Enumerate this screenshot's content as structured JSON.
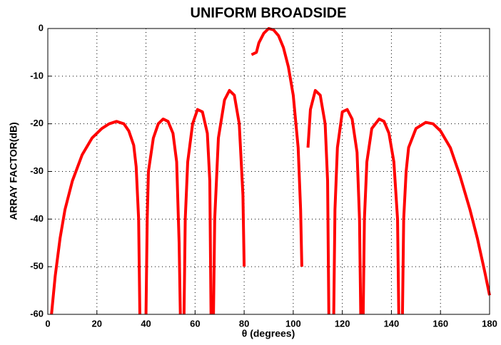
{
  "chart_data": {
    "type": "line",
    "title": "UNIFORM BROADSIDE",
    "x_label": "θ (degrees)",
    "y_label": "ARRAY FACTOR(dB)",
    "xlim": [
      0,
      180
    ],
    "ylim": [
      -60,
      0
    ],
    "xticks": [
      0,
      20,
      40,
      60,
      80,
      100,
      120,
      140,
      160,
      180
    ],
    "yticks": [
      -60,
      -50,
      -40,
      -30,
      -20,
      -10,
      0
    ],
    "grid": true,
    "series": [
      {
        "color": "#ff0000",
        "x": [
          1.5,
          3,
          5,
          7,
          10,
          14,
          18,
          22,
          25,
          28,
          31,
          33,
          35,
          36,
          37,
          37.5,
          null,
          40,
          40.5,
          41,
          43,
          45,
          47,
          49,
          51,
          52.5,
          53.5,
          54,
          null,
          55.5,
          56,
          57,
          59,
          61,
          63,
          65,
          66,
          66.5,
          null,
          67.5,
          68,
          69.5,
          72,
          74,
          76,
          78,
          79.5,
          80,
          null,
          83,
          85,
          86,
          88,
          90,
          92,
          94,
          96,
          98,
          100,
          102,
          103,
          103.5,
          null,
          106,
          107,
          109,
          111,
          113,
          114,
          114.5,
          null,
          116.5,
          117,
          118,
          120,
          122,
          124,
          126,
          127,
          127.5,
          null,
          128.5,
          129,
          130,
          132,
          135,
          137,
          139,
          141,
          142.5,
          143,
          null,
          144.5,
          145,
          146,
          147,
          150,
          154,
          157,
          160,
          164,
          168,
          172,
          175,
          178,
          180
        ],
        "values": [
          -60,
          -52,
          -44,
          -38,
          -32,
          -26.5,
          -23,
          -21,
          -20,
          -19.5,
          -20,
          -21.5,
          -24.5,
          -29,
          -40,
          -60,
          null,
          -60,
          -40,
          -30,
          -23,
          -20,
          -19,
          -19.5,
          -22,
          -28,
          -45,
          -60,
          null,
          -60,
          -40,
          -28,
          -20,
          -17,
          -17.5,
          -22,
          -32,
          -60,
          null,
          -60,
          -40,
          -23,
          -15,
          -13,
          -14,
          -20,
          -35,
          -50,
          null,
          -5.5,
          -5,
          -3,
          -1,
          0,
          -0.3,
          -1.5,
          -4,
          -8,
          -14,
          -25,
          -38,
          -50,
          null,
          -25,
          -17,
          -13,
          -14,
          -20,
          -32,
          -60,
          null,
          -60,
          -38,
          -25,
          -17.5,
          -17,
          -19,
          -26,
          -40,
          -60,
          null,
          -60,
          -40,
          -28,
          -21,
          -19,
          -19.5,
          -22,
          -28,
          -40,
          -60,
          null,
          -60,
          -40,
          -30,
          -25,
          -21,
          -19.7,
          -20,
          -21.5,
          -25,
          -31,
          -38,
          -44,
          -51,
          -56
        ]
      }
    ]
  }
}
